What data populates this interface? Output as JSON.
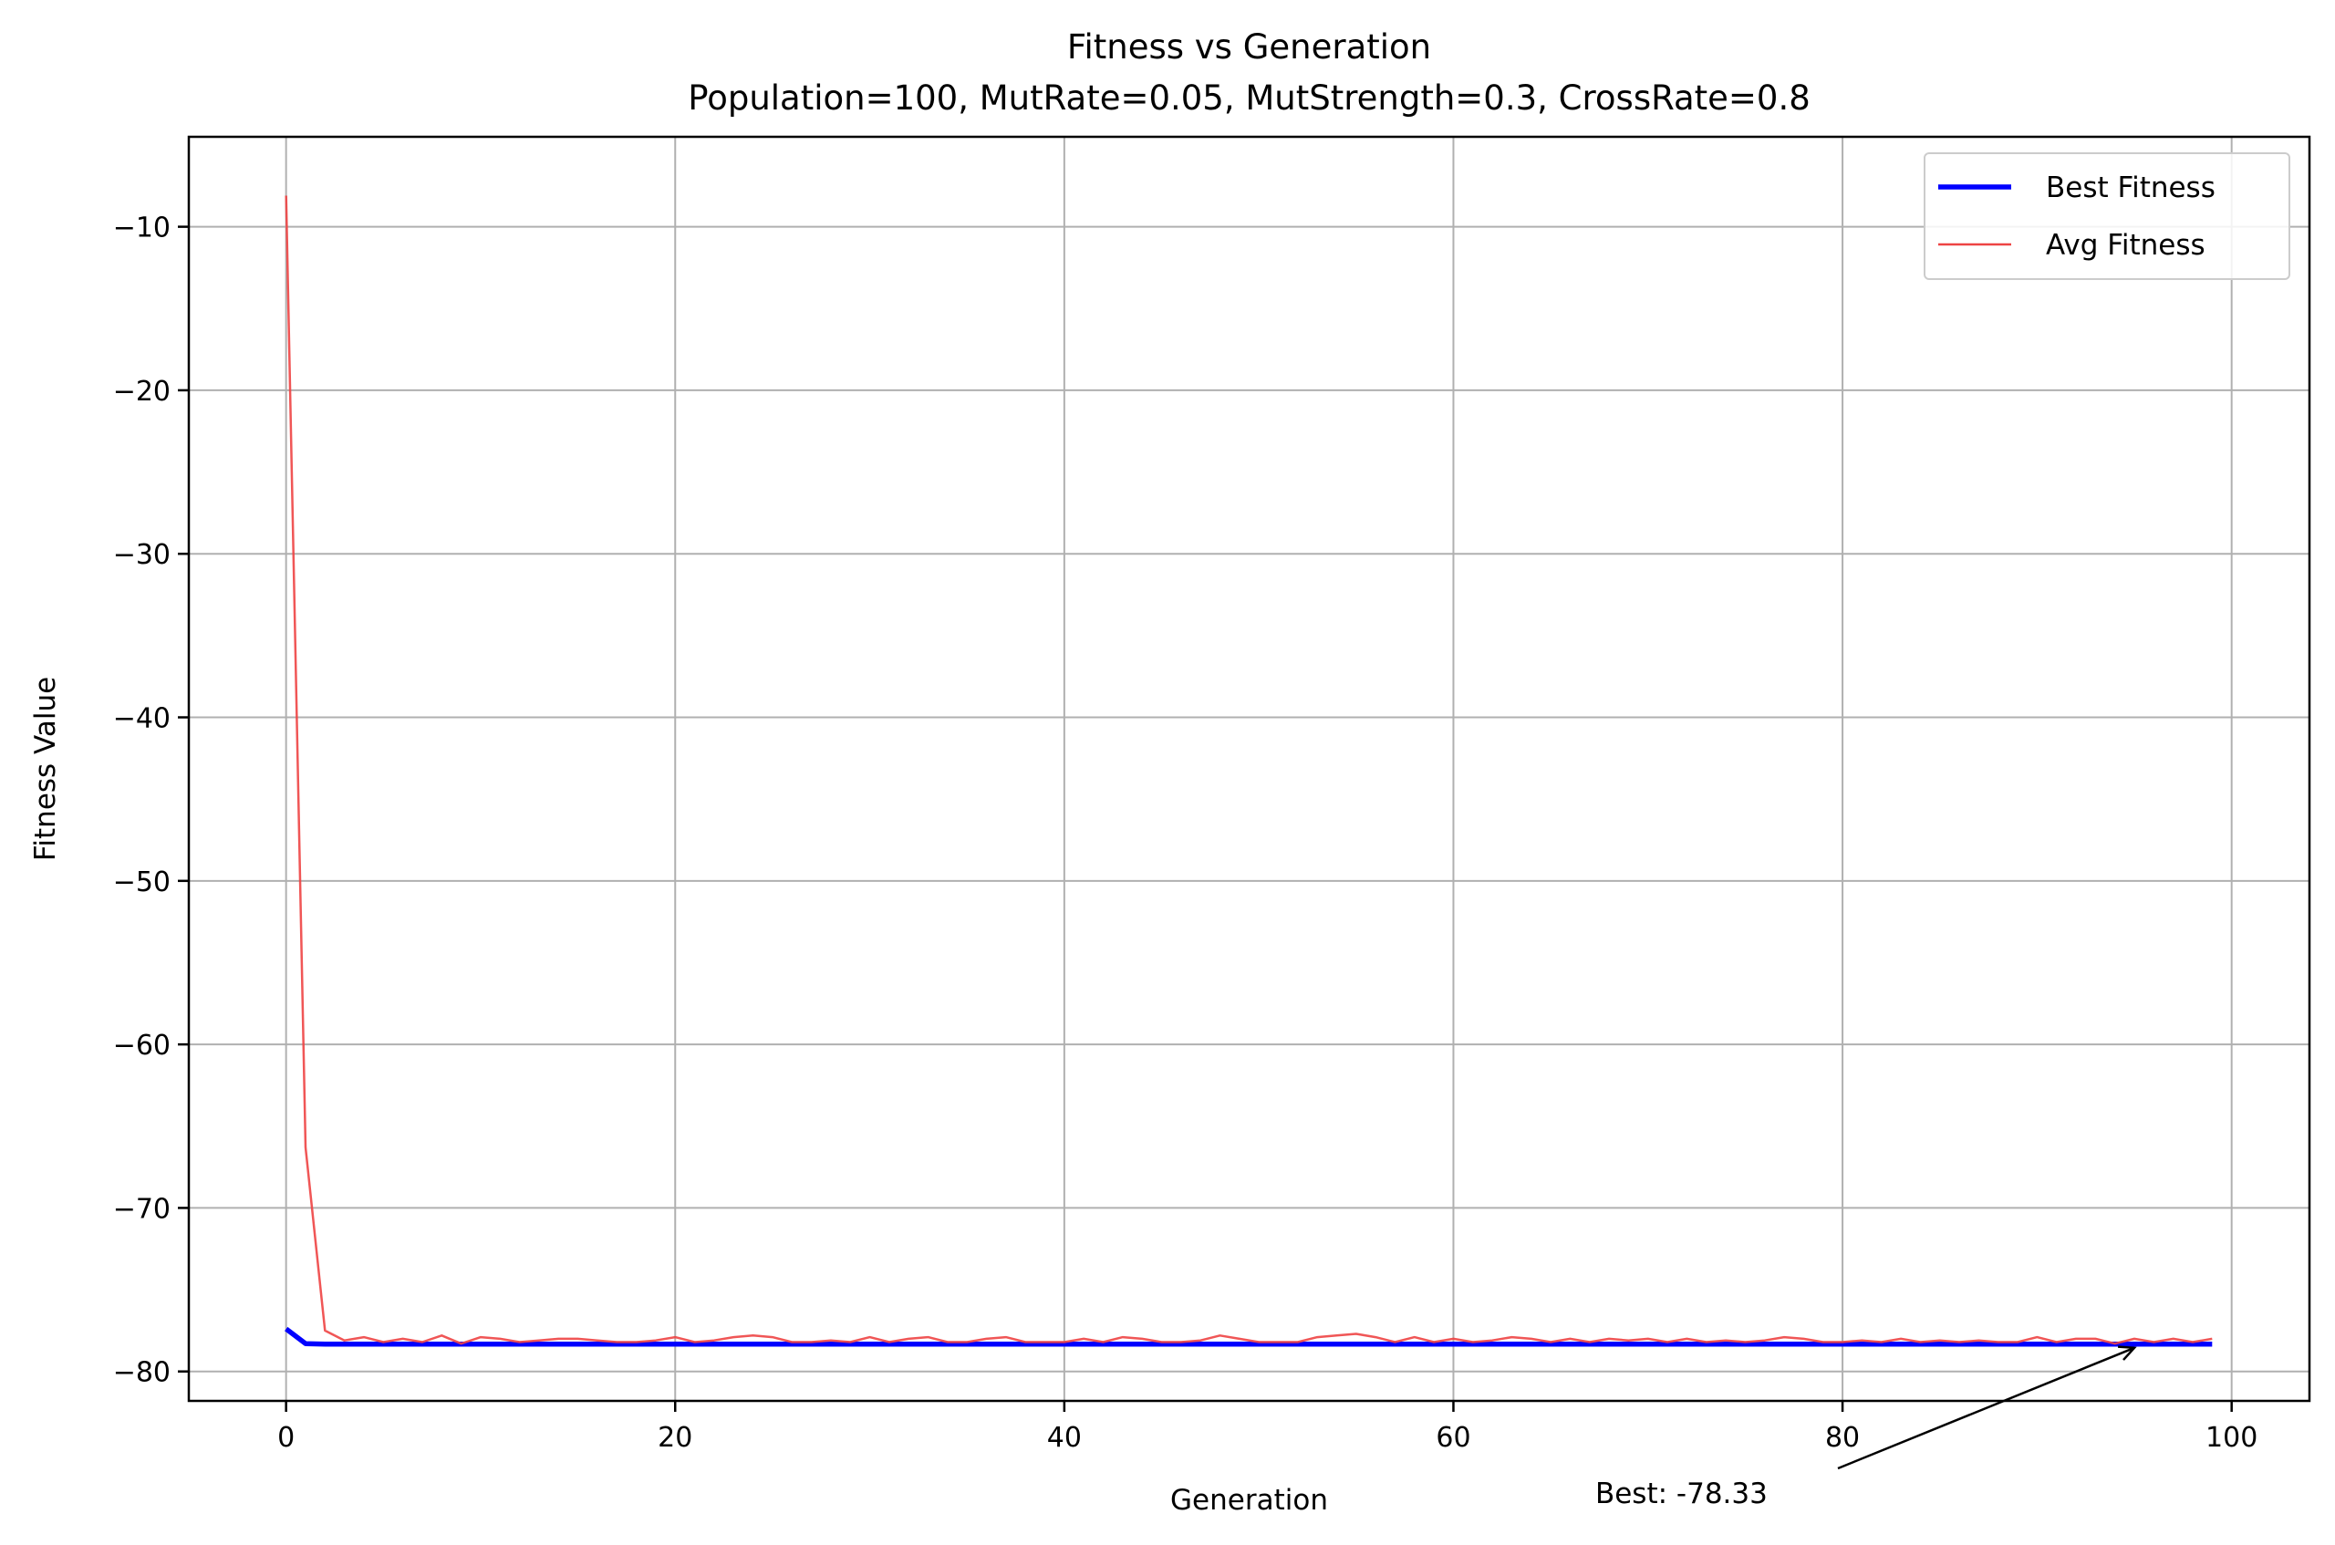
{
  "chart_data": {
    "type": "line",
    "title": "Fitness vs Generation",
    "subtitle": "Population=100, MutRate=0.05, MutStrength=0.3, CrossRate=0.8",
    "xlabel": "Generation",
    "ylabel": "Fitness Value",
    "xlim": [
      -5,
      104
    ],
    "ylim": [
      -81.8,
      -4.5
    ],
    "xticks": [
      0,
      20,
      40,
      60,
      80,
      100
    ],
    "yticks": [
      -10,
      -20,
      -30,
      -40,
      -50,
      -60,
      -70,
      -80
    ],
    "xtick_labels": [
      "0",
      "20",
      "40",
      "60",
      "80",
      "100"
    ],
    "ytick_labels": [
      "−10",
      "−20",
      "−30",
      "−40",
      "−50",
      "−60",
      "−70",
      "−80"
    ],
    "grid": true,
    "legend_position": "top-right",
    "series": [
      {
        "name": "Best Fitness",
        "color": "#0000ff",
        "x": [
          0,
          1,
          2,
          99
        ],
        "y": [
          -77.4,
          -78.3,
          -78.33,
          -78.33
        ]
      },
      {
        "name": "Avg Fitness",
        "color": "#ee4444",
        "x": [
          0,
          1,
          2,
          3,
          4,
          5,
          6,
          7,
          8,
          9,
          10,
          11,
          12,
          13,
          14,
          15,
          16,
          17,
          18,
          19,
          20,
          21,
          22,
          23,
          24,
          25,
          26,
          27,
          28,
          29,
          30,
          31,
          32,
          33,
          34,
          35,
          36,
          37,
          38,
          39,
          40,
          41,
          42,
          43,
          44,
          45,
          46,
          47,
          48,
          49,
          50,
          51,
          52,
          53,
          54,
          55,
          56,
          57,
          58,
          59,
          60,
          61,
          62,
          63,
          64,
          65,
          66,
          67,
          68,
          69,
          70,
          71,
          72,
          73,
          74,
          75,
          76,
          77,
          78,
          79,
          80,
          81,
          82,
          83,
          84,
          85,
          86,
          87,
          88,
          89,
          90,
          91,
          92,
          93,
          94,
          95,
          96,
          97,
          98,
          99
        ],
        "y": [
          -8.1,
          -66.3,
          -77.5,
          -78.1,
          -77.9,
          -78.2,
          -78.0,
          -78.2,
          -77.8,
          -78.3,
          -77.9,
          -78.0,
          -78.2,
          -78.1,
          -78.0,
          -78.0,
          -78.1,
          -78.2,
          -78.2,
          -78.1,
          -77.9,
          -78.2,
          -78.1,
          -77.9,
          -77.8,
          -77.9,
          -78.2,
          -78.2,
          -78.1,
          -78.2,
          -77.9,
          -78.2,
          -78.0,
          -77.9,
          -78.2,
          -78.2,
          -78.0,
          -77.9,
          -78.2,
          -78.2,
          -78.2,
          -78.0,
          -78.2,
          -77.9,
          -78.0,
          -78.2,
          -78.2,
          -78.1,
          -77.8,
          -78.0,
          -78.2,
          -78.2,
          -78.2,
          -77.9,
          -77.8,
          -77.7,
          -77.9,
          -78.2,
          -77.9,
          -78.2,
          -78.0,
          -78.2,
          -78.1,
          -77.9,
          -78.0,
          -78.2,
          -78.0,
          -78.2,
          -78.0,
          -78.1,
          -78.0,
          -78.2,
          -78.0,
          -78.2,
          -78.1,
          -78.2,
          -78.1,
          -77.9,
          -78.0,
          -78.2,
          -78.2,
          -78.1,
          -78.2,
          -78.0,
          -78.2,
          -78.1,
          -78.2,
          -78.1,
          -78.2,
          -78.2,
          -77.9,
          -78.2,
          -78.0,
          -78.0,
          -78.3,
          -78.0,
          -78.2,
          -78.0,
          -78.2,
          -78.0
        ]
      }
    ],
    "annotation": {
      "text": "Best: -78.33",
      "target_x": 95,
      "target_y": -78.33,
      "text_x": 75,
      "text_y": -87.5
    }
  }
}
